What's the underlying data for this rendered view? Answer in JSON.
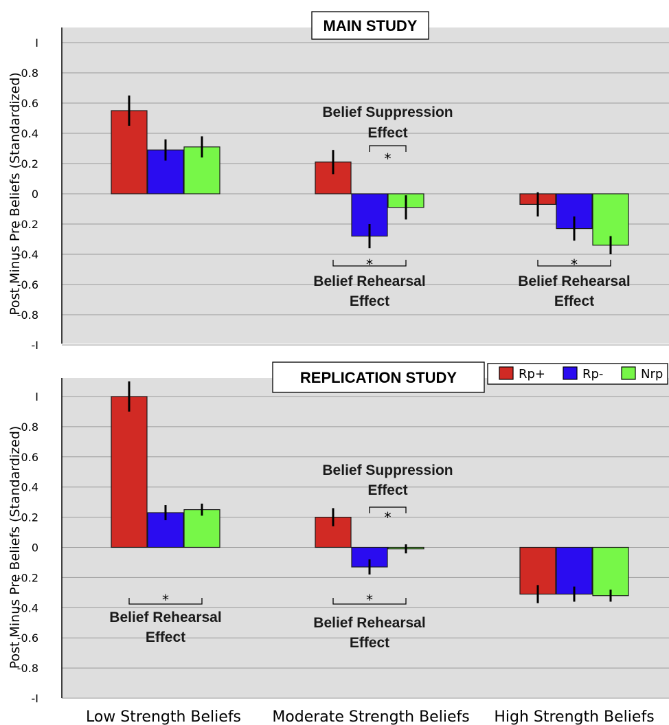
{
  "chart_data": [
    {
      "type": "bar",
      "title": "MAIN STUDY",
      "ylabel": "Post Minus Pre Beliefs (Standardized)",
      "ylim": [
        -1,
        1
      ],
      "yticks": [
        "I",
        "0.8",
        "0.6",
        "0.4",
        "0.2",
        "0",
        "-0.2",
        "-0.4",
        "-0.6",
        "-0.8",
        "-I"
      ],
      "ytick_values": [
        1,
        0.8,
        0.6,
        0.4,
        0.2,
        0,
        -0.2,
        -0.4,
        -0.6,
        -0.8,
        -1
      ],
      "categories": [
        "Low Strength Beliefs",
        "Moderate Strength Beliefs",
        "High Strength Beliefs"
      ],
      "grid": true,
      "series": [
        {
          "name": "Rp+",
          "color": "#d12a24",
          "values": [
            0.55,
            0.21,
            -0.07
          ],
          "errors": [
            0.1,
            0.08,
            0.08
          ]
        },
        {
          "name": "Rp-",
          "color": "#2a0cf0",
          "values": [
            0.29,
            -0.28,
            -0.23
          ],
          "errors": [
            0.07,
            0.08,
            0.08
          ]
        },
        {
          "name": "Nrp",
          "color": "#77f748",
          "values": [
            0.31,
            -0.09,
            -0.34
          ],
          "errors": [
            0.07,
            0.08,
            0.06
          ]
        }
      ],
      "annotations": [
        {
          "category": 1,
          "lines": [
            "Belief Suppression",
            "Effect"
          ],
          "star": "*",
          "position": "above",
          "from_series": 1,
          "to_series": 2
        },
        {
          "category": 1,
          "lines": [
            "Belief Rehearsal",
            "Effect"
          ],
          "star": "*",
          "position": "below",
          "from_series": 0,
          "to_series": 2
        },
        {
          "category": 2,
          "lines": [
            "Belief Rehearsal",
            "Effect"
          ],
          "star": "*",
          "position": "below",
          "from_series": 0,
          "to_series": 2
        }
      ]
    },
    {
      "type": "bar",
      "title": "REPLICATION STUDY",
      "ylabel": "Post Minus Pre Beliefs (Standardized)",
      "ylim": [
        -1,
        1
      ],
      "yticks": [
        "I",
        "0.8",
        "0.6",
        "0.4",
        "0.2",
        "0",
        "-0.2",
        "-0.4",
        "-0.6",
        "-0.8",
        "-I"
      ],
      "ytick_values": [
        1,
        0.8,
        0.6,
        0.4,
        0.2,
        0,
        -0.2,
        -0.4,
        -0.6,
        -0.8,
        -1
      ],
      "categories": [
        "Low Strength Beliefs",
        "Moderate Strength Beliefs",
        "High Strength Beliefs"
      ],
      "grid": true,
      "legend": {
        "placement": "top-right",
        "entries": [
          "Rp+",
          "Rp-",
          "Nrp"
        ]
      },
      "series": [
        {
          "name": "Rp+",
          "color": "#d12a24",
          "values": [
            1.0,
            0.2,
            -0.31
          ],
          "errors": [
            0.1,
            0.06,
            0.06
          ]
        },
        {
          "name": "Rp-",
          "color": "#2a0cf0",
          "values": [
            0.23,
            -0.13,
            -0.31
          ],
          "errors": [
            0.05,
            0.05,
            0.05
          ]
        },
        {
          "name": "Nrp",
          "color": "#77f748",
          "values": [
            0.25,
            -0.01,
            -0.32
          ],
          "errors": [
            0.04,
            0.03,
            0.04
          ]
        }
      ],
      "annotations": [
        {
          "category": 0,
          "lines": [
            "Belief Rehearsal",
            "Effect"
          ],
          "star": "*",
          "position": "below",
          "from_series": 0,
          "to_series": 2
        },
        {
          "category": 1,
          "lines": [
            "Belief Suppression",
            "Effect"
          ],
          "star": "*",
          "position": "above",
          "from_series": 1,
          "to_series": 2
        },
        {
          "category": 1,
          "lines": [
            "Belief Rehearsal",
            "Effect"
          ],
          "star": "*",
          "position": "below",
          "from_series": 0,
          "to_series": 2
        }
      ]
    }
  ]
}
